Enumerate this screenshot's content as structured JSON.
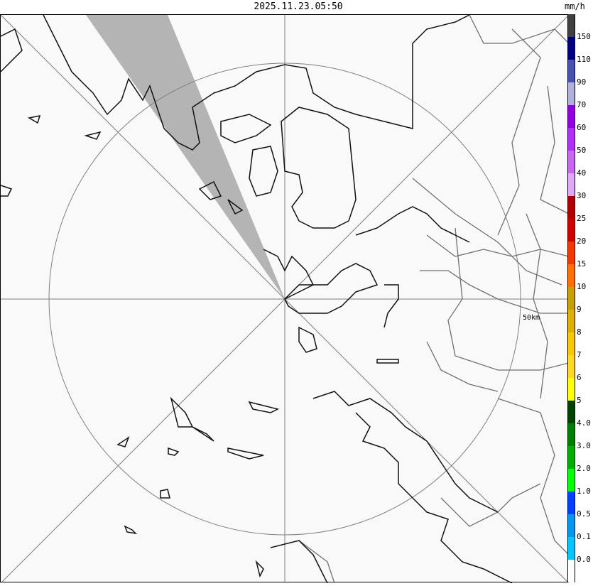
{
  "header": {
    "timestamp": "2025.11.23.05:50",
    "unit": "mm/h"
  },
  "map": {
    "range_ring_label": "50km",
    "colors": {
      "background": "#f9f9f9",
      "ring": "#808080",
      "coast": "#000000",
      "boundary": "#707070",
      "beam_shadow": "#b4b4b4"
    }
  },
  "legend": {
    "segments": [
      {
        "color": "#404040",
        "label": "150"
      },
      {
        "color": "#000080",
        "label": "110"
      },
      {
        "color": "#4850b0",
        "label": "90"
      },
      {
        "color": "#b0b0d8",
        "label": "70"
      },
      {
        "color": "#9000e0",
        "label": "60"
      },
      {
        "color": "#b030f8",
        "label": "50"
      },
      {
        "color": "#c868f0",
        "label": "40"
      },
      {
        "color": "#e0a8f8",
        "label": "30"
      },
      {
        "color": "#b00000",
        "label": "25"
      },
      {
        "color": "#d00000",
        "label": "20"
      },
      {
        "color": "#f03800",
        "label": "15"
      },
      {
        "color": "#ff7000",
        "label": "10"
      },
      {
        "color": "#c8a000",
        "label": "9"
      },
      {
        "color": "#e0b000",
        "label": "8"
      },
      {
        "color": "#f8c800",
        "label": "7"
      },
      {
        "color": "#ffd820",
        "label": "6"
      },
      {
        "color": "#ffff00",
        "label": "5"
      },
      {
        "color": "#004400",
        "label": "4.0"
      },
      {
        "color": "#008000",
        "label": "3.0"
      },
      {
        "color": "#00b000",
        "label": "2.0"
      },
      {
        "color": "#00ff00",
        "label": "1.0"
      },
      {
        "color": "#0040ff",
        "label": "0.5"
      },
      {
        "color": "#0098f0",
        "label": "0.1"
      },
      {
        "color": "#00c8ff",
        "label": "0.0"
      },
      {
        "color": "#ffffff",
        "label": ""
      }
    ]
  }
}
